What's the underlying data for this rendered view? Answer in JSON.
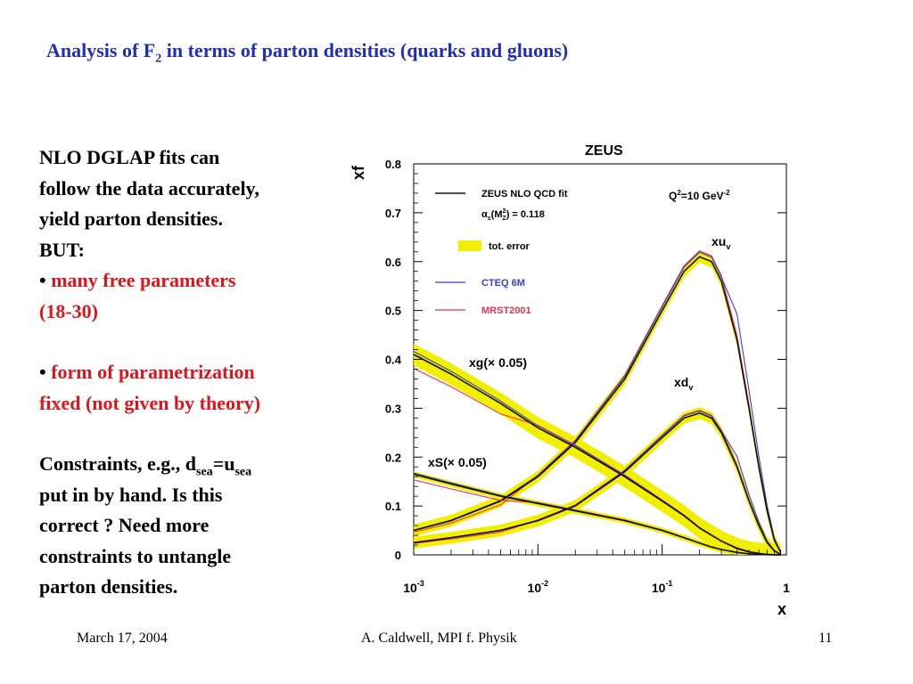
{
  "slide": {
    "title_main": "Analysis of F",
    "title_sub": "2",
    "title_rest": " in terms of parton densities (quarks and gluons)",
    "left": {
      "line1": "NLO DGLAP fits can",
      "line2": "follow the data accurately,",
      "line3": "yield parton densities.",
      "line4": "BUT:",
      "bullet1_a": "many free parameters",
      "bullet1_b": "(18-30)",
      "bullet2_a": "form of parametrization",
      "bullet2_b": "fixed (not given by theory)",
      "c_prefix": "Constraints, e.g., d",
      "c_sub1": "sea",
      "c_eq": "=u",
      "c_sub2": "sea",
      "c_line2": "put in by hand.  Is this",
      "c_line3": "correct ? Need more",
      "c_line4": "constraints to untangle",
      "c_line5": "parton densities."
    },
    "footer": {
      "date": "March 17, 2004",
      "author": "A. Caldwell, MPI f. Physik",
      "page": "11"
    }
  },
  "colors": {
    "title": "#1f2fb3",
    "red_text": "#e0141b",
    "band": "#f2ee00",
    "zeus": "#111111",
    "cteq": "#3b3bd6",
    "mrst": "#e8344a"
  },
  "chart_data": {
    "type": "line",
    "title": "ZEUS",
    "ylabel": "xf",
    "xlabel": "x",
    "xscale": "log",
    "xlim": [
      0.001,
      1
    ],
    "ylim": [
      0,
      0.8
    ],
    "yticks": [
      "0",
      "0.1",
      "0.2",
      "0.3",
      "0.4",
      "0.5",
      "0.6",
      "0.7",
      "0.8"
    ],
    "xticks": [
      {
        "base": "10",
        "exp": "-3",
        "value": 0.001
      },
      {
        "base": "10",
        "exp": "-2",
        "value": 0.01
      },
      {
        "base": "10",
        "exp": "-1",
        "value": 0.1
      },
      {
        "base": "1",
        "exp": "",
        "value": 1
      }
    ],
    "q2_base": "Q",
    "q2_sup1": "2",
    "q2_mid": "=10 GeV",
    "q2_sup2": "-2",
    "legend": {
      "zeus": "ZEUS NLO QCD fit",
      "alpha_a": "α",
      "alpha_s": "s",
      "alpha_b": "(M",
      "alpha_z2": "2",
      "alpha_zs": "Z",
      "alpha_c": ") = 0.118",
      "band": "tot. error",
      "cteq": "CTEQ 6M",
      "mrst": "MRST2001"
    },
    "curve_labels": {
      "xuv_a": "xu",
      "xuv_b": "v",
      "xdv_a": "xd",
      "xdv_b": "v",
      "xg": "xg(× 0.05)",
      "xs": "xS(× 0.05)"
    },
    "x": [
      0.001,
      0.002,
      0.005,
      0.01,
      0.02,
      0.05,
      0.1,
      0.15,
      0.2,
      0.25,
      0.3,
      0.4,
      0.5,
      0.6,
      0.7,
      0.8,
      0.9
    ],
    "series": [
      {
        "key": "xuv",
        "values": [
          0.05,
          0.07,
          0.11,
          0.16,
          0.23,
          0.36,
          0.5,
          0.58,
          0.61,
          0.6,
          0.56,
          0.44,
          0.3,
          0.18,
          0.09,
          0.03,
          0.005
        ],
        "band": 0.012
      },
      {
        "key": "xdv",
        "values": [
          0.025,
          0.035,
          0.05,
          0.07,
          0.1,
          0.17,
          0.24,
          0.28,
          0.29,
          0.28,
          0.25,
          0.18,
          0.11,
          0.06,
          0.025,
          0.008,
          0.001
        ],
        "band": 0.012
      },
      {
        "key": "xg",
        "values": [
          0.41,
          0.37,
          0.31,
          0.26,
          0.22,
          0.16,
          0.11,
          0.08,
          0.055,
          0.04,
          0.028,
          0.013,
          0.006,
          0.003,
          0.001,
          0.0003,
          0.0
        ],
        "band": 0.022
      },
      {
        "key": "xs",
        "values": [
          0.165,
          0.145,
          0.12,
          0.105,
          0.09,
          0.07,
          0.05,
          0.035,
          0.024,
          0.016,
          0.011,
          0.005,
          0.002,
          0.001,
          0.0003,
          0.0001,
          0.0
        ],
        "band": 0.006
      }
    ]
  }
}
